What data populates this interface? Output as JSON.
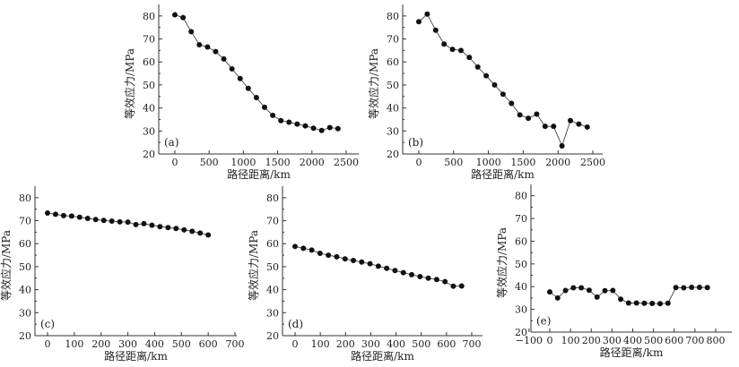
{
  "chart_data": [
    {
      "type": "line",
      "panel_label": "(a)",
      "xlabel": "路径距离/km",
      "ylabel": "等效应力/MPa",
      "xlim": [
        -150,
        2600
      ],
      "ylim": [
        20,
        85
      ],
      "xticks": [
        0,
        500,
        1000,
        1500,
        2000,
        2500
      ],
      "yticks": [
        20,
        30,
        40,
        50,
        60,
        70,
        80
      ],
      "x": [
        0,
        119,
        238,
        357,
        476,
        595,
        714,
        833,
        952,
        1071,
        1190,
        1309,
        1428,
        1547,
        1666,
        1785,
        1904,
        2023,
        2142,
        2261,
        2380
      ],
      "y": [
        80.5,
        79.3,
        73.2,
        67.5,
        66.5,
        64.5,
        61.3,
        57,
        52.8,
        48.5,
        44.5,
        40.3,
        36.8,
        34.5,
        33.8,
        33,
        32.2,
        31.2,
        30.2,
        31.5,
        31
      ]
    },
    {
      "type": "line",
      "panel_label": "(b)",
      "xlabel": "路径距离/km",
      "ylabel": "等效应力/MPa",
      "xlim": [
        -100,
        2650
      ],
      "ylim": [
        20,
        85
      ],
      "xticks": [
        0,
        500,
        1000,
        1500,
        2000,
        2500
      ],
      "yticks": [
        20,
        30,
        40,
        50,
        60,
        70,
        80
      ],
      "x": [
        0,
        121,
        242,
        363,
        484,
        605,
        726,
        847,
        968,
        1089,
        1210,
        1331,
        1452,
        1573,
        1694,
        1815,
        1936,
        2057,
        2178,
        2299,
        2420
      ],
      "y": [
        77.5,
        80.8,
        73.8,
        67.8,
        65.5,
        65,
        62,
        57.8,
        54,
        50,
        46,
        42,
        37,
        35.5,
        37.3,
        32,
        32,
        23.5,
        34.5,
        33,
        31.7
      ]
    },
    {
      "type": "line",
      "panel_label": "(c)",
      "xlabel": "路径距离/km",
      "ylabel": "等效应力/MPa",
      "xlim": [
        -45,
        705
      ],
      "ylim": [
        20,
        85
      ],
      "xticks": [
        0,
        100,
        200,
        300,
        400,
        500,
        600,
        700
      ],
      "yticks": [
        20,
        30,
        40,
        50,
        60,
        70,
        80
      ],
      "x": [
        0,
        30,
        60,
        90,
        120,
        150,
        180,
        210,
        240,
        270,
        300,
        330,
        360,
        390,
        420,
        450,
        480,
        510,
        540,
        570,
        600
      ],
      "y": [
        73.3,
        72.8,
        72.2,
        72,
        71.5,
        71,
        70.5,
        70.1,
        69.8,
        69.5,
        69.4,
        68.3,
        68.7,
        68,
        67.4,
        67,
        66.6,
        66,
        65.4,
        64.6,
        63.8
      ]
    },
    {
      "type": "line",
      "panel_label": "(d)",
      "xlabel": "路径距离/km",
      "ylabel": "等效应力/MPa",
      "xlim": [
        -50,
        760
      ],
      "ylim": [
        20,
        85
      ],
      "xticks": [
        0,
        100,
        200,
        300,
        400,
        500,
        600,
        700
      ],
      "yticks": [
        20,
        30,
        40,
        50,
        60,
        70,
        80
      ],
      "x": [
        0,
        33,
        66,
        99,
        132,
        165,
        198,
        231,
        264,
        297,
        330,
        363,
        396,
        429,
        462,
        495,
        528,
        561,
        594,
        627,
        660
      ],
      "y": [
        58.8,
        58,
        57.2,
        55.8,
        55,
        54.3,
        53.4,
        52.7,
        52,
        51.3,
        50.2,
        49.3,
        48.3,
        47.4,
        46.5,
        45.7,
        45,
        44.4,
        43.5,
        41.5,
        41.6
      ]
    },
    {
      "type": "line",
      "panel_label": "(e)",
      "xlabel": "路径距离/km",
      "ylabel": "等效应力/MPa",
      "xlim": [
        -100,
        870
      ],
      "ylim": [
        20,
        85
      ],
      "xticks": [
        -100,
        0,
        100,
        200,
        300,
        400,
        500,
        600,
        700,
        800
      ],
      "yticks": [
        20,
        30,
        40,
        50,
        60,
        70,
        80
      ],
      "x": [
        0,
        38,
        76,
        114,
        152,
        190,
        228,
        266,
        304,
        342,
        380,
        418,
        456,
        494,
        532,
        570,
        608,
        646,
        684,
        722,
        760
      ],
      "y": [
        37.7,
        35,
        38.3,
        39.5,
        39.5,
        38.4,
        35.4,
        38.2,
        38.3,
        34.5,
        32.8,
        32.8,
        32.7,
        32.6,
        32.5,
        32.7,
        39.6,
        39.5,
        39.7,
        39.7,
        39.6
      ]
    }
  ]
}
